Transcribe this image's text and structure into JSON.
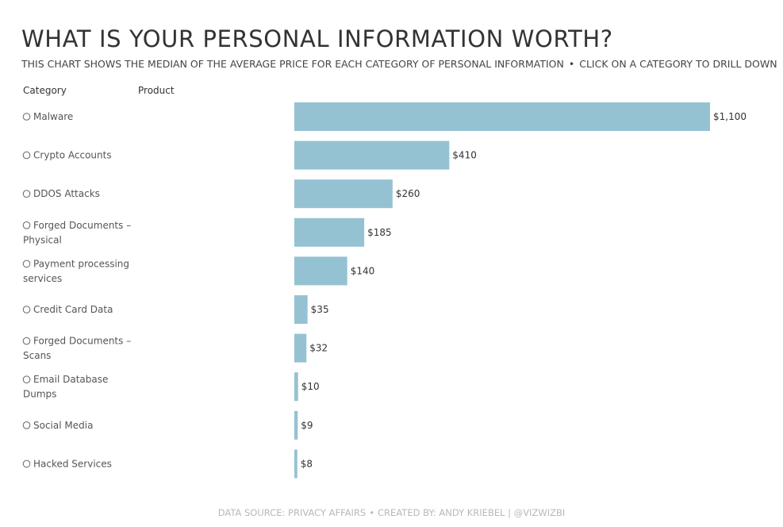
{
  "title": "WHAT IS YOUR PERSONAL INFORMATION WORTH?",
  "subtitle": {
    "description": "THIS CHART SHOWS THE MEDIAN OF THE AVERAGE PRICE FOR EACH CATEGORY OF PERSONAL INFORMATION",
    "separator": "•",
    "instruction": "CLICK ON A CATEGORY TO DRILL DOWN"
  },
  "columns": {
    "category": "Category",
    "product": "Product"
  },
  "footer": {
    "source": "DATA SOURCE: PRIVACY AFFAIRS",
    "separator": "•",
    "credit": "CREATED BY: ANDY KRIEBEL | @VIZWIZBI"
  },
  "colors": {
    "bar": "#95c2d3",
    "text": "#333333",
    "footer": "#b8b8b8"
  },
  "radio_icon": "empty-circle-radio-icon",
  "chart_data": {
    "type": "bar",
    "orientation": "horizontal",
    "categories": [
      [
        "Malware"
      ],
      [
        "Crypto Accounts"
      ],
      [
        "DDOS Attacks"
      ],
      [
        "Forged Documents –",
        "Physical"
      ],
      [
        "Payment processing",
        "services"
      ],
      [
        "Credit Card Data"
      ],
      [
        "Forged Documents –",
        "Scans"
      ],
      [
        "Email Database",
        "Dumps"
      ],
      [
        "Social Media"
      ],
      [
        "Hacked Services"
      ]
    ],
    "values": [
      1100,
      410,
      260,
      185,
      140,
      35,
      32,
      10,
      9,
      8
    ],
    "value_labels": [
      "$1,100",
      "$410",
      "$260",
      "$185",
      "$140",
      "$35",
      "$32",
      "$10",
      "$9",
      "$8"
    ],
    "xlim": [
      0,
      1100
    ],
    "grid": false,
    "legend": "none"
  }
}
